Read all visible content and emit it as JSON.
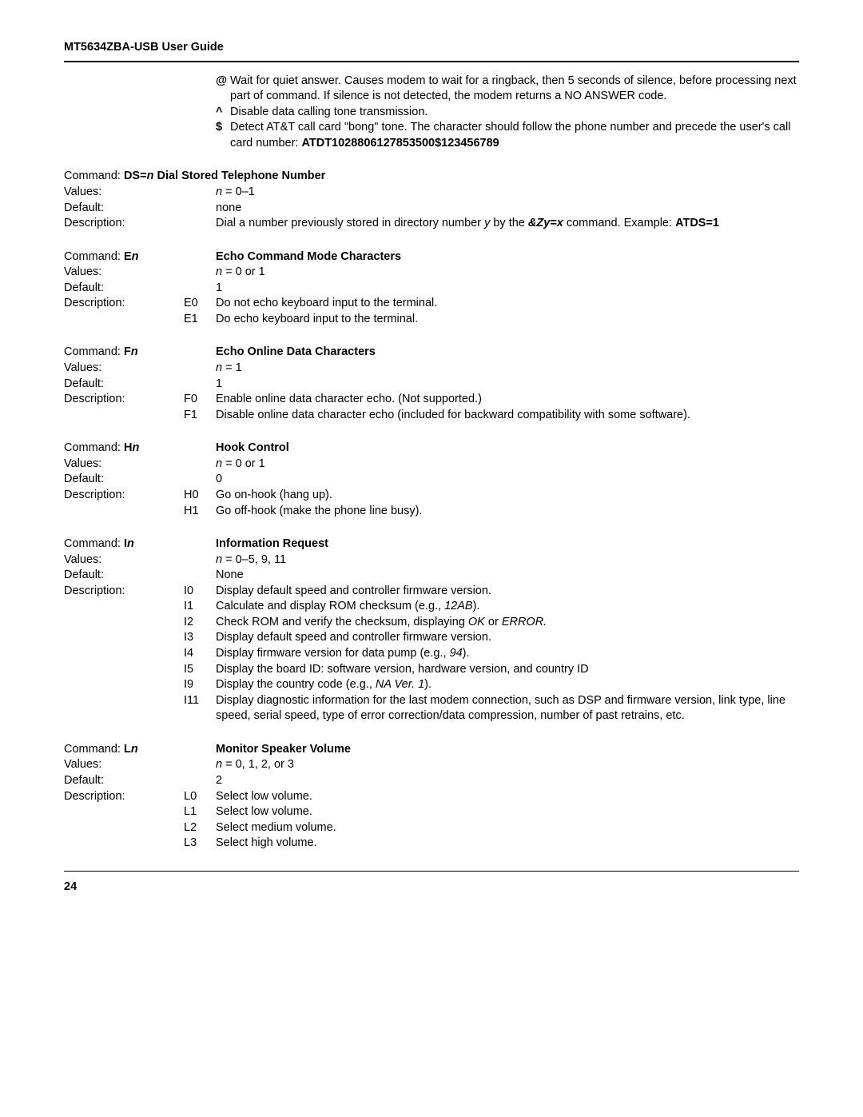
{
  "header": "MT5634ZBA-USB User Guide",
  "pageNumber": "24",
  "topBlock": {
    "atSym": "@",
    "atText": "Wait for quiet answer. Causes modem to wait for a ringback, then 5 seconds of silence, before processing next part of command. If silence is not detected, the modem returns a NO ANSWER code.",
    "caretSym": "^",
    "caretText": "Disable data calling tone transmission.",
    "dollarSym": "$",
    "dollarText1": "Detect AT&T call card \"bong\" tone. The character should follow the phone number and precede the user's call card number: ",
    "dollarBold": "ATDT1028806127853500$123456789"
  },
  "ds": {
    "cmdLabel": "Command: ",
    "cmdBold": "DS=",
    "cmdN": "n",
    "cmdTitle": " Dial Stored Telephone Number",
    "valuesLabel": "Values:",
    "valuesN": "n",
    "valuesRest": " = 0–1",
    "defaultLabel": "Default:",
    "defaultVal": "none",
    "descLabel": "Description:",
    "desc1a": "Dial a number previously stored in directory number ",
    "desc1y": "y",
    "desc1b": " by the ",
    "desc1cmd": "&Zy=x",
    "desc1c": " command. Example: ",
    "desc1ex": "ATDS=1"
  },
  "en": {
    "cmdLabel": "Command:",
    "cmdLetter": "E",
    "cmdN": "n",
    "title": "Echo Command Mode Characters",
    "valuesLabel": "Values:",
    "valuesN": "n",
    "valuesRest": " = 0 or 1",
    "defaultLabel": "Default:",
    "defaultVal": "1",
    "descLabel": "Description:",
    "sub0": "E0",
    "sub0desc": "Do not echo keyboard input to the terminal.",
    "sub1": "E1",
    "sub1desc": "Do echo keyboard input to the terminal."
  },
  "fn": {
    "cmdLabel": "Command:",
    "cmdLetter": "F",
    "cmdN": "n",
    "title": "Echo Online Data Characters",
    "valuesLabel": "Values:",
    "valuesN": "n",
    "valuesRest": " = 1",
    "defaultLabel": "Default:",
    "defaultVal": "1",
    "descLabel": "Description:",
    "sub0": "F0",
    "sub0desc": "Enable online data character echo. (Not supported.)",
    "sub1": "F1",
    "sub1desc": "Disable online data character echo (included for backward compatibility with some software)."
  },
  "hn": {
    "cmdLabel": "Command:",
    "cmdLetter": "H",
    "cmdN": "n",
    "title": "Hook Control",
    "valuesLabel": "Values:",
    "valuesN": "n",
    "valuesRest": " = 0 or 1",
    "defaultLabel": "Default:",
    "defaultVal": "0",
    "descLabel": "Description:",
    "sub0": "H0",
    "sub0desc": "Go on-hook (hang up).",
    "sub1": "H1",
    "sub1desc": "Go off-hook (make the phone line busy)."
  },
  "in": {
    "cmdLabel": "Command:",
    "cmdLetter": "I",
    "cmdN": "n",
    "title": "Information Request",
    "valuesLabel": "Values:",
    "valuesN": "n",
    "valuesRest": " = 0–5, 9, 11",
    "defaultLabel": "Default:",
    "defaultVal": "None",
    "descLabel": "Description:",
    "s0": "I0",
    "s0d": "Display default speed and controller firmware version.",
    "s1": "I1",
    "s1a": "Calculate and display ROM checksum (e.g., ",
    "s1i": "12AB",
    "s1b": ").",
    "s2": "I2",
    "s2a": "Check ROM and verify the checksum, displaying ",
    "s2i1": "OK",
    "s2b": " or ",
    "s2i2": "ERROR.",
    "s3": "I3",
    "s3d": "Display default speed and controller firmware version.",
    "s4": "I4",
    "s4a": "Display firmware version for data pump (e.g., ",
    "s4i": "94",
    "s4b": ").",
    "s5": "I5",
    "s5d": "Display the board ID: software version, hardware version, and country ID",
    "s9": "I9",
    "s9a": "Display the country code (e.g., ",
    "s9i": "NA Ver. 1",
    "s9b": ").",
    "s11": "I11",
    "s11d": "Display diagnostic information for the last modem connection, such as DSP and firmware version, link type, line speed, serial speed, type of error correction/data compression, number of past retrains, etc."
  },
  "ln": {
    "cmdLabel": "Command:",
    "cmdLetter": "L",
    "cmdN": "n",
    "title": "Monitor Speaker Volume",
    "valuesLabel": "Values:",
    "valuesN": "n",
    "valuesRest": " = 0, 1, 2, or 3",
    "defaultLabel": "Default:",
    "defaultVal": "2",
    "descLabel": "Description:",
    "s0": "L0",
    "s0d": "Select low volume.",
    "s1": "L1",
    "s1d": "Select low volume.",
    "s2": "L2",
    "s2d": "Select medium volume.",
    "s3": "L3",
    "s3d": "Select high volume."
  }
}
